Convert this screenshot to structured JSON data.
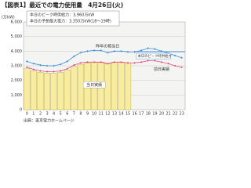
{
  "chart_data": {
    "type": "bar",
    "title": "【図表1】最近での電力使用量　4月26日(火)",
    "info_lines": [
      "本日のピーク時供給力：3,960万kW",
      "本日の予想最大電力：3,350万kW(18～19時)"
    ],
    "y_label": "(万kW)",
    "source": "出典：東京電力ホームページ",
    "categories": [
      "0",
      "1",
      "2",
      "3",
      "4",
      "5",
      "6",
      "7",
      "8",
      "9",
      "10",
      "11",
      "12",
      "13",
      "14",
      "15",
      "16",
      "17",
      "18",
      "19",
      "20",
      "21",
      "22",
      "23"
    ],
    "ylim": [
      0,
      6000
    ],
    "yticks": [
      0,
      {
        "value": 1000,
        "label": "1,000"
      },
      {
        "value": 2000,
        "label": "2,000"
      },
      {
        "value": 3000,
        "label": "3,000"
      },
      {
        "value": 4000,
        "label": "4,000"
      },
      {
        "value": 5000,
        "label": "5,000"
      },
      {
        "value": 6000,
        "label": "6,000"
      }
    ],
    "grid": true,
    "series": [
      {
        "name": "当日実績",
        "type": "bar",
        "color": "#f7eca0",
        "values": [
          2800,
          2650,
          2550,
          2500,
          2500,
          2550,
          2700,
          2950,
          3100,
          3200,
          3250,
          3250,
          3150,
          3250,
          3250,
          3200,
          null,
          null,
          null,
          null,
          null,
          null,
          null,
          null
        ]
      },
      {
        "name": "昨年の相当日",
        "type": "line",
        "color": "#3b8fdb",
        "values": [
          3300,
          3150,
          3050,
          3000,
          3000,
          3100,
          3300,
          3650,
          3900,
          4000,
          4050,
          4050,
          3900,
          4000,
          4000,
          3950,
          3950,
          4050,
          4200,
          4150,
          4000,
          3850,
          3700,
          3550
        ]
      },
      {
        "name": "前日実績",
        "type": "line",
        "color": "#e0507a",
        "values": [
          2900,
          2750,
          2650,
          2600,
          2600,
          2650,
          2800,
          3050,
          3200,
          3250,
          3250,
          3250,
          3150,
          3250,
          3250,
          3200,
          3200,
          3250,
          3350,
          3350,
          3250,
          3150,
          3000,
          2900
        ]
      }
    ],
    "supply_line": {
      "name": "本日のピーク時供給力",
      "value": 3960,
      "color": "#3b8fdb"
    }
  }
}
